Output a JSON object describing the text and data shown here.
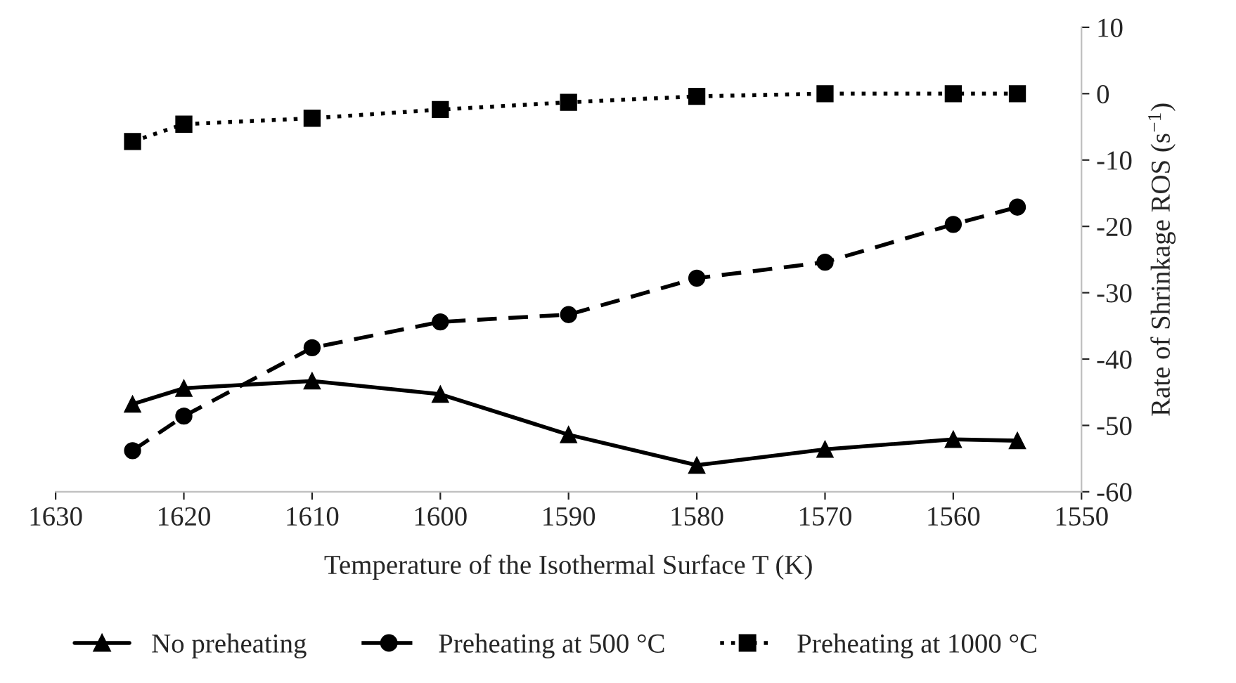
{
  "chart_data": {
    "type": "line",
    "xlabel": "Temperature of the Isothermal Surface T (K)",
    "ylabel": "Rate of Shrinkage ROS (s$^{−1}$)",
    "x": [
      1624,
      1620,
      1610,
      1600,
      1590,
      1580,
      1570,
      1560,
      1555
    ],
    "series": [
      {
        "name": "No preheating",
        "color": "#000000",
        "marker": "triangle",
        "line_style": "solid",
        "values": [
          -46.8,
          -44.4,
          -43.3,
          -45.3,
          -51.4,
          -56.0,
          -53.6,
          -52.1,
          -52.3
        ]
      },
      {
        "name": "Preheating at 500 °C",
        "color": "#000000",
        "marker": "circle",
        "line_style": "dashed",
        "values": [
          -53.8,
          -48.6,
          -38.3,
          -34.4,
          -33.3,
          -27.8,
          -25.4,
          -19.7,
          -17.1
        ]
      },
      {
        "name": "Preheating at 1000 °C",
        "color": "#000000",
        "marker": "square",
        "line_style": "dotted",
        "values": [
          -7.2,
          -4.6,
          -3.7,
          -2.4,
          -1.3,
          -0.4,
          0.0,
          0.0,
          0.0
        ]
      }
    ],
    "xlim": [
      1630,
      1550
    ],
    "xticks": [
      1630,
      1620,
      1610,
      1600,
      1590,
      1580,
      1570,
      1560,
      1550
    ],
    "ylim": [
      -60,
      10
    ],
    "yticks": [
      -60,
      -50,
      -40,
      -30,
      -20,
      -10,
      0,
      10
    ],
    "grid": false,
    "legend": "bottom"
  }
}
